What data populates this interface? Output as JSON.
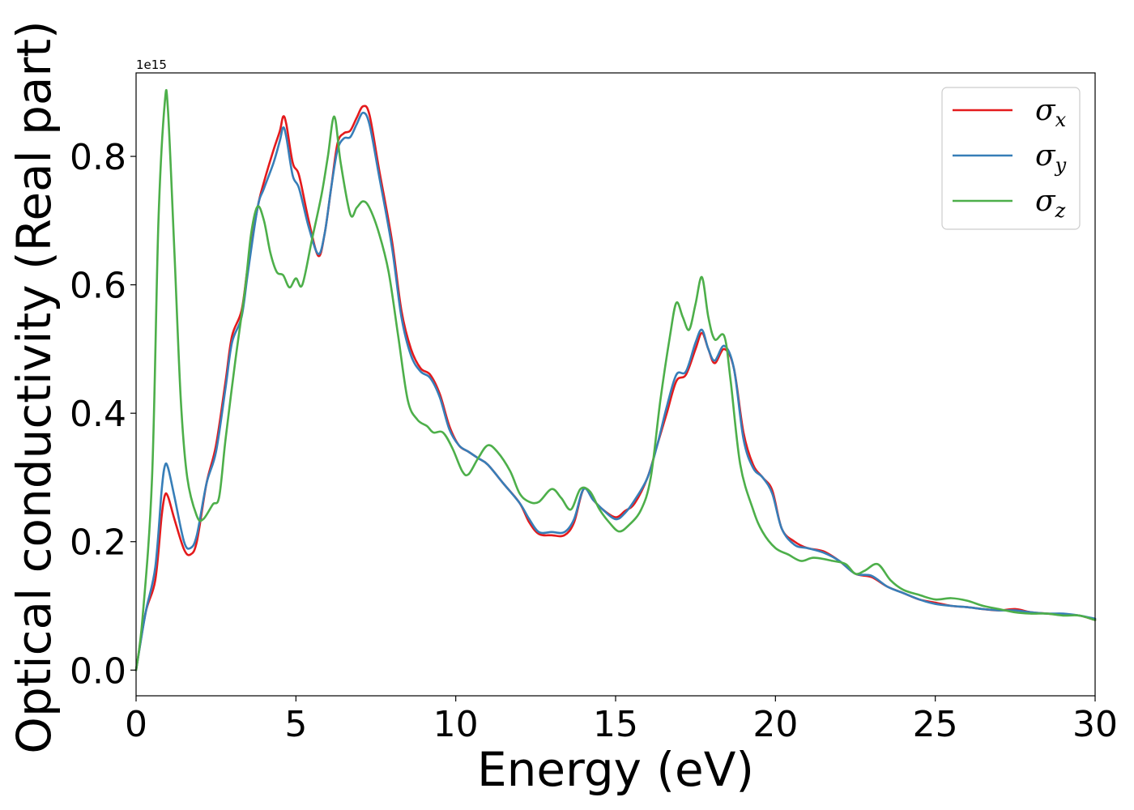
{
  "chart_data": {
    "type": "line",
    "title": "",
    "xlabel": "Energy (eV)",
    "ylabel": "Optical conductivity (Real part)",
    "y_offset_text": "1e15",
    "y_multiplier": 1000000000000000.0,
    "xlim": [
      0,
      30
    ],
    "ylim": [
      -0.04,
      0.93
    ],
    "x_ticks": [
      0,
      5,
      10,
      15,
      20,
      25,
      30
    ],
    "x_tick_labels": [
      "0",
      "5",
      "10",
      "15",
      "20",
      "25",
      "30"
    ],
    "y_ticks": [
      0.0,
      0.2,
      0.4,
      0.6,
      0.8
    ],
    "y_tick_labels": [
      "0.0",
      "0.2",
      "0.4",
      "0.6",
      "0.8"
    ],
    "grid": false,
    "legend_position": "top-right",
    "series": [
      {
        "name": "σx",
        "legend_base": "σ",
        "legend_sub": "x",
        "color": "#e41a1c",
        "points": [
          [
            0,
            0.0
          ],
          [
            0.3,
            0.09
          ],
          [
            0.6,
            0.14
          ],
          [
            0.8,
            0.24
          ],
          [
            0.9,
            0.272
          ],
          [
            1.0,
            0.27
          ],
          [
            1.2,
            0.235
          ],
          [
            1.5,
            0.188
          ],
          [
            1.7,
            0.18
          ],
          [
            1.9,
            0.2
          ],
          [
            2.2,
            0.29
          ],
          [
            2.5,
            0.35
          ],
          [
            2.8,
            0.45
          ],
          [
            3.0,
            0.52
          ],
          [
            3.3,
            0.56
          ],
          [
            3.5,
            0.63
          ],
          [
            3.8,
            0.72
          ],
          [
            4.0,
            0.76
          ],
          [
            4.3,
            0.81
          ],
          [
            4.5,
            0.84
          ],
          [
            4.6,
            0.862
          ],
          [
            4.7,
            0.85
          ],
          [
            4.9,
            0.79
          ],
          [
            5.1,
            0.77
          ],
          [
            5.4,
            0.7
          ],
          [
            5.7,
            0.645
          ],
          [
            5.9,
            0.68
          ],
          [
            6.1,
            0.75
          ],
          [
            6.3,
            0.82
          ],
          [
            6.5,
            0.836
          ],
          [
            6.7,
            0.84
          ],
          [
            6.9,
            0.86
          ],
          [
            7.1,
            0.878
          ],
          [
            7.3,
            0.865
          ],
          [
            7.6,
            0.78
          ],
          [
            8.0,
            0.67
          ],
          [
            8.3,
            0.56
          ],
          [
            8.6,
            0.5
          ],
          [
            8.9,
            0.47
          ],
          [
            9.2,
            0.46
          ],
          [
            9.5,
            0.43
          ],
          [
            9.8,
            0.38
          ],
          [
            10.1,
            0.35
          ],
          [
            10.4,
            0.34
          ],
          [
            10.7,
            0.33
          ],
          [
            11.0,
            0.32
          ],
          [
            11.5,
            0.29
          ],
          [
            12.0,
            0.26
          ],
          [
            12.3,
            0.23
          ],
          [
            12.6,
            0.212
          ],
          [
            13.0,
            0.21
          ],
          [
            13.4,
            0.21
          ],
          [
            13.7,
            0.23
          ],
          [
            14.0,
            0.282
          ],
          [
            14.3,
            0.265
          ],
          [
            14.6,
            0.25
          ],
          [
            15.0,
            0.238
          ],
          [
            15.3,
            0.248
          ],
          [
            15.6,
            0.26
          ],
          [
            16.0,
            0.3
          ],
          [
            16.3,
            0.35
          ],
          [
            16.6,
            0.4
          ],
          [
            16.9,
            0.45
          ],
          [
            17.2,
            0.46
          ],
          [
            17.5,
            0.5
          ],
          [
            17.7,
            0.525
          ],
          [
            17.9,
            0.5
          ],
          [
            18.1,
            0.478
          ],
          [
            18.4,
            0.5
          ],
          [
            18.7,
            0.47
          ],
          [
            19.0,
            0.37
          ],
          [
            19.3,
            0.32
          ],
          [
            19.6,
            0.3
          ],
          [
            19.9,
            0.28
          ],
          [
            20.2,
            0.22
          ],
          [
            20.6,
            0.2
          ],
          [
            21.0,
            0.19
          ],
          [
            21.5,
            0.185
          ],
          [
            22.0,
            0.17
          ],
          [
            22.5,
            0.15
          ],
          [
            23.0,
            0.145
          ],
          [
            23.5,
            0.13
          ],
          [
            24.0,
            0.12
          ],
          [
            24.5,
            0.11
          ],
          [
            25.0,
            0.105
          ],
          [
            25.5,
            0.1
          ],
          [
            26.0,
            0.098
          ],
          [
            26.5,
            0.095
          ],
          [
            27.0,
            0.093
          ],
          [
            27.5,
            0.095
          ],
          [
            28.0,
            0.09
          ],
          [
            28.5,
            0.088
          ],
          [
            29.0,
            0.086
          ],
          [
            29.5,
            0.085
          ],
          [
            30.0,
            0.078
          ]
        ]
      },
      {
        "name": "σy",
        "legend_base": "σ",
        "legend_sub": "y",
        "color": "#377eb8",
        "points": [
          [
            0,
            0.0
          ],
          [
            0.3,
            0.09
          ],
          [
            0.6,
            0.16
          ],
          [
            0.8,
            0.28
          ],
          [
            0.9,
            0.318
          ],
          [
            1.0,
            0.315
          ],
          [
            1.2,
            0.27
          ],
          [
            1.5,
            0.2
          ],
          [
            1.7,
            0.19
          ],
          [
            1.9,
            0.21
          ],
          [
            2.2,
            0.29
          ],
          [
            2.5,
            0.34
          ],
          [
            2.8,
            0.44
          ],
          [
            3.0,
            0.51
          ],
          [
            3.3,
            0.55
          ],
          [
            3.5,
            0.62
          ],
          [
            3.8,
            0.72
          ],
          [
            4.0,
            0.75
          ],
          [
            4.3,
            0.79
          ],
          [
            4.5,
            0.825
          ],
          [
            4.6,
            0.845
          ],
          [
            4.7,
            0.83
          ],
          [
            4.9,
            0.77
          ],
          [
            5.1,
            0.75
          ],
          [
            5.4,
            0.69
          ],
          [
            5.7,
            0.648
          ],
          [
            5.9,
            0.68
          ],
          [
            6.1,
            0.75
          ],
          [
            6.3,
            0.81
          ],
          [
            6.5,
            0.828
          ],
          [
            6.7,
            0.83
          ],
          [
            6.9,
            0.85
          ],
          [
            7.1,
            0.868
          ],
          [
            7.3,
            0.85
          ],
          [
            7.6,
            0.77
          ],
          [
            8.0,
            0.66
          ],
          [
            8.3,
            0.55
          ],
          [
            8.6,
            0.49
          ],
          [
            8.9,
            0.465
          ],
          [
            9.2,
            0.455
          ],
          [
            9.5,
            0.425
          ],
          [
            9.8,
            0.375
          ],
          [
            10.1,
            0.35
          ],
          [
            10.4,
            0.34
          ],
          [
            10.7,
            0.33
          ],
          [
            11.0,
            0.32
          ],
          [
            11.5,
            0.29
          ],
          [
            12.0,
            0.26
          ],
          [
            12.3,
            0.235
          ],
          [
            12.6,
            0.215
          ],
          [
            13.0,
            0.215
          ],
          [
            13.4,
            0.215
          ],
          [
            13.7,
            0.235
          ],
          [
            14.0,
            0.282
          ],
          [
            14.3,
            0.265
          ],
          [
            14.6,
            0.25
          ],
          [
            15.0,
            0.235
          ],
          [
            15.3,
            0.245
          ],
          [
            15.6,
            0.265
          ],
          [
            16.0,
            0.3
          ],
          [
            16.3,
            0.35
          ],
          [
            16.6,
            0.41
          ],
          [
            16.9,
            0.46
          ],
          [
            17.2,
            0.465
          ],
          [
            17.5,
            0.51
          ],
          [
            17.7,
            0.53
          ],
          [
            17.9,
            0.5
          ],
          [
            18.1,
            0.482
          ],
          [
            18.4,
            0.505
          ],
          [
            18.7,
            0.47
          ],
          [
            19.0,
            0.36
          ],
          [
            19.3,
            0.315
          ],
          [
            19.6,
            0.3
          ],
          [
            19.9,
            0.275
          ],
          [
            20.2,
            0.22
          ],
          [
            20.6,
            0.195
          ],
          [
            21.0,
            0.19
          ],
          [
            21.5,
            0.183
          ],
          [
            22.0,
            0.17
          ],
          [
            22.5,
            0.15
          ],
          [
            23.0,
            0.147
          ],
          [
            23.5,
            0.13
          ],
          [
            24.0,
            0.12
          ],
          [
            24.5,
            0.11
          ],
          [
            25.0,
            0.103
          ],
          [
            25.5,
            0.1
          ],
          [
            26.0,
            0.098
          ],
          [
            26.5,
            0.095
          ],
          [
            27.0,
            0.093
          ],
          [
            27.5,
            0.093
          ],
          [
            28.0,
            0.09
          ],
          [
            28.5,
            0.088
          ],
          [
            29.0,
            0.088
          ],
          [
            29.5,
            0.085
          ],
          [
            30.0,
            0.08
          ]
        ]
      },
      {
        "name": "σz",
        "legend_base": "σ",
        "legend_sub": "z",
        "color": "#4daf4a",
        "points": [
          [
            0,
            0.0
          ],
          [
            0.2,
            0.08
          ],
          [
            0.5,
            0.3
          ],
          [
            0.7,
            0.7
          ],
          [
            0.9,
            0.885
          ],
          [
            1.0,
            0.87
          ],
          [
            1.2,
            0.65
          ],
          [
            1.4,
            0.42
          ],
          [
            1.6,
            0.3
          ],
          [
            1.9,
            0.24
          ],
          [
            2.1,
            0.235
          ],
          [
            2.4,
            0.258
          ],
          [
            2.6,
            0.27
          ],
          [
            2.8,
            0.36
          ],
          [
            3.1,
            0.48
          ],
          [
            3.4,
            0.59
          ],
          [
            3.6,
            0.68
          ],
          [
            3.8,
            0.722
          ],
          [
            4.0,
            0.7
          ],
          [
            4.2,
            0.65
          ],
          [
            4.4,
            0.62
          ],
          [
            4.6,
            0.615
          ],
          [
            4.8,
            0.596
          ],
          [
            5.0,
            0.61
          ],
          [
            5.2,
            0.6
          ],
          [
            5.5,
            0.67
          ],
          [
            5.8,
            0.74
          ],
          [
            6.0,
            0.8
          ],
          [
            6.2,
            0.862
          ],
          [
            6.4,
            0.79
          ],
          [
            6.7,
            0.71
          ],
          [
            6.9,
            0.72
          ],
          [
            7.1,
            0.73
          ],
          [
            7.3,
            0.72
          ],
          [
            7.6,
            0.68
          ],
          [
            7.9,
            0.62
          ],
          [
            8.2,
            0.52
          ],
          [
            8.5,
            0.42
          ],
          [
            8.8,
            0.39
          ],
          [
            9.1,
            0.38
          ],
          [
            9.3,
            0.37
          ],
          [
            9.6,
            0.37
          ],
          [
            9.9,
            0.345
          ],
          [
            10.2,
            0.31
          ],
          [
            10.4,
            0.305
          ],
          [
            10.7,
            0.33
          ],
          [
            11.0,
            0.35
          ],
          [
            11.3,
            0.34
          ],
          [
            11.7,
            0.31
          ],
          [
            12.0,
            0.275
          ],
          [
            12.3,
            0.262
          ],
          [
            12.6,
            0.262
          ],
          [
            13.0,
            0.282
          ],
          [
            13.3,
            0.268
          ],
          [
            13.6,
            0.25
          ],
          [
            13.9,
            0.282
          ],
          [
            14.2,
            0.278
          ],
          [
            14.5,
            0.25
          ],
          [
            14.8,
            0.23
          ],
          [
            15.1,
            0.216
          ],
          [
            15.4,
            0.225
          ],
          [
            15.8,
            0.25
          ],
          [
            16.1,
            0.3
          ],
          [
            16.4,
            0.42
          ],
          [
            16.7,
            0.52
          ],
          [
            16.9,
            0.572
          ],
          [
            17.1,
            0.55
          ],
          [
            17.3,
            0.53
          ],
          [
            17.5,
            0.57
          ],
          [
            17.7,
            0.612
          ],
          [
            17.9,
            0.55
          ],
          [
            18.1,
            0.515
          ],
          [
            18.4,
            0.52
          ],
          [
            18.6,
            0.45
          ],
          [
            18.9,
            0.32
          ],
          [
            19.3,
            0.25
          ],
          [
            19.6,
            0.215
          ],
          [
            20.0,
            0.19
          ],
          [
            20.4,
            0.18
          ],
          [
            20.8,
            0.17
          ],
          [
            21.2,
            0.175
          ],
          [
            21.8,
            0.17
          ],
          [
            22.2,
            0.165
          ],
          [
            22.5,
            0.15
          ],
          [
            22.8,
            0.155
          ],
          [
            23.2,
            0.165
          ],
          [
            23.6,
            0.14
          ],
          [
            24.0,
            0.125
          ],
          [
            24.5,
            0.117
          ],
          [
            25.0,
            0.11
          ],
          [
            25.5,
            0.112
          ],
          [
            26.0,
            0.108
          ],
          [
            26.5,
            0.1
          ],
          [
            27.0,
            0.095
          ],
          [
            27.5,
            0.09
          ],
          [
            28.0,
            0.088
          ],
          [
            28.5,
            0.088
          ],
          [
            29.0,
            0.085
          ],
          [
            29.5,
            0.085
          ],
          [
            30.0,
            0.078
          ]
        ]
      }
    ]
  }
}
